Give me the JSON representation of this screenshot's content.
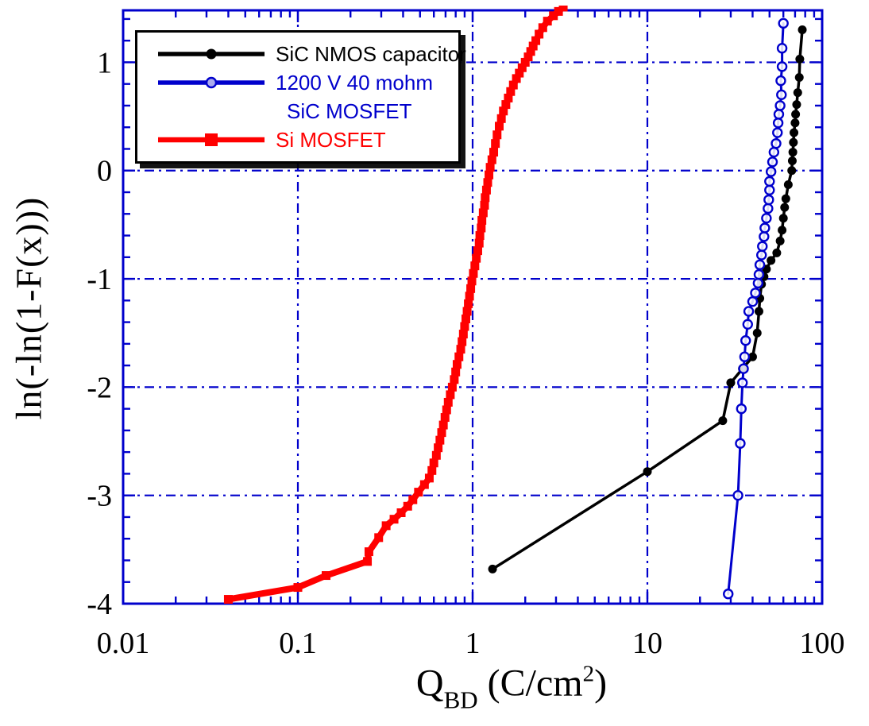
{
  "chart_data": {
    "type": "line",
    "title": "",
    "x_scale": "log",
    "xlim": [
      0.01,
      100
    ],
    "ylim": [
      -4,
      1.48
    ],
    "xlabel": {
      "symbol": "Q",
      "subscript": "BD",
      "unit_prefix": " (C/cm",
      "unit_sup": "2",
      "unit_suffix": ")"
    },
    "ylabel": "ln(-ln(1-F(x)))",
    "x_ticks": [
      {
        "value": 0.01,
        "label": "0.01"
      },
      {
        "value": 0.1,
        "label": "0.1"
      },
      {
        "value": 1,
        "label": "1"
      },
      {
        "value": 10,
        "label": "10"
      },
      {
        "value": 100,
        "label": "100"
      }
    ],
    "y_ticks": [
      {
        "value": 1,
        "label": "1"
      },
      {
        "value": 0,
        "label": "0"
      },
      {
        "value": -1,
        "label": "-1"
      },
      {
        "value": -2,
        "label": "-2"
      },
      {
        "value": -3,
        "label": "-3"
      },
      {
        "value": -4,
        "label": "-4"
      }
    ],
    "grid": {
      "style": "dash-dot",
      "color": "#0000CC",
      "x_lines": [
        0.1,
        1,
        10
      ],
      "y_lines": [
        1,
        0,
        -1,
        -2,
        -3
      ]
    },
    "frame_color": "#0000CC",
    "legend_position": "top-left",
    "series": [
      {
        "name": "SiC NMOS capacitor",
        "legend_lines": [
          "SiC NMOS capacitor"
        ],
        "color": "#000000",
        "marker": "filled-circle",
        "line_width": 3.5,
        "points": [
          [
            1.3,
            -3.68
          ],
          [
            10,
            -2.78
          ],
          [
            27,
            -2.31
          ],
          [
            30,
            -1.96
          ],
          [
            35,
            -1.83
          ],
          [
            40,
            -1.72
          ],
          [
            42.5,
            -1.5
          ],
          [
            43.5,
            -1.3
          ],
          [
            44,
            -1.18
          ],
          [
            45,
            -1.05
          ],
          [
            46.5,
            -0.98
          ],
          [
            48,
            -0.91
          ],
          [
            51,
            -0.83
          ],
          [
            55,
            -0.76
          ],
          [
            57.5,
            -0.65
          ],
          [
            59,
            -0.55
          ],
          [
            60,
            -0.44
          ],
          [
            61,
            -0.34
          ],
          [
            62,
            -0.26
          ],
          [
            64,
            -0.13
          ],
          [
            67,
            0.0
          ],
          [
            67.5,
            0.09
          ],
          [
            68,
            0.17
          ],
          [
            68.5,
            0.26
          ],
          [
            69,
            0.35
          ],
          [
            70,
            0.44
          ],
          [
            70.5,
            0.52
          ],
          [
            71.5,
            0.61
          ],
          [
            72.5,
            0.72
          ],
          [
            74,
            0.86
          ],
          [
            74.5,
            1.03
          ],
          [
            77,
            1.3
          ]
        ]
      },
      {
        "name": "1200 V 40 mohm SiC MOSFET",
        "legend_lines": [
          "1200 V 40 mohm",
          "SiC MOSFET"
        ],
        "color": "#0000CC",
        "marker": "open-circle",
        "line_width": 3,
        "points": [
          [
            29,
            -3.91
          ],
          [
            33,
            -3.0
          ],
          [
            34,
            -2.52
          ],
          [
            34.5,
            -2.2
          ],
          [
            35,
            -1.96
          ],
          [
            35.5,
            -1.83
          ],
          [
            36,
            -1.72
          ],
          [
            36.5,
            -1.57
          ],
          [
            37.5,
            -1.42
          ],
          [
            38,
            -1.3
          ],
          [
            40,
            -1.21
          ],
          [
            41.5,
            -1.13
          ],
          [
            43,
            -1.04
          ],
          [
            43.5,
            -0.96
          ],
          [
            44,
            -0.87
          ],
          [
            45,
            -0.78
          ],
          [
            45.5,
            -0.7
          ],
          [
            46.5,
            -0.61
          ],
          [
            47,
            -0.53
          ],
          [
            48,
            -0.44
          ],
          [
            49,
            -0.35
          ],
          [
            49.5,
            -0.27
          ],
          [
            50,
            -0.18
          ],
          [
            50,
            -0.1
          ],
          [
            51,
            -0.01
          ],
          [
            52,
            0.08
          ],
          [
            53,
            0.17
          ],
          [
            54.5,
            0.25
          ],
          [
            55.5,
            0.35
          ],
          [
            56,
            0.44
          ],
          [
            56.5,
            0.52
          ],
          [
            57.5,
            0.6
          ],
          [
            58.5,
            0.7
          ],
          [
            58,
            0.83
          ],
          [
            59,
            0.96
          ],
          [
            59,
            1.13
          ],
          [
            60,
            1.36
          ]
        ]
      },
      {
        "name": "Si MOSFET",
        "legend_lines": [
          "Si MOSFET"
        ],
        "color": "#FF0000",
        "marker": "filled-square",
        "line_width": 8,
        "points": [
          [
            0.04,
            -3.96
          ],
          [
            0.1,
            -3.85
          ],
          [
            0.145,
            -3.74
          ],
          [
            0.25,
            -3.61
          ],
          [
            0.255,
            -3.52
          ],
          [
            0.29,
            -3.39
          ],
          [
            0.32,
            -3.28
          ],
          [
            0.355,
            -3.22
          ],
          [
            0.39,
            -3.16
          ],
          [
            0.425,
            -3.1
          ],
          [
            0.455,
            -3.04
          ],
          [
            0.49,
            -2.97
          ],
          [
            0.53,
            -2.9
          ],
          [
            0.565,
            -2.84
          ],
          [
            0.585,
            -2.77
          ],
          [
            0.6,
            -2.7
          ],
          [
            0.62,
            -2.63
          ],
          [
            0.635,
            -2.56
          ],
          [
            0.65,
            -2.49
          ],
          [
            0.665,
            -2.42
          ],
          [
            0.68,
            -2.35
          ],
          [
            0.695,
            -2.28
          ],
          [
            0.71,
            -2.21
          ],
          [
            0.725,
            -2.14
          ],
          [
            0.745,
            -2.07
          ],
          [
            0.765,
            -2.0
          ],
          [
            0.785,
            -1.93
          ],
          [
            0.8,
            -1.86
          ],
          [
            0.815,
            -1.79
          ],
          [
            0.835,
            -1.72
          ],
          [
            0.855,
            -1.65
          ],
          [
            0.87,
            -1.58
          ],
          [
            0.885,
            -1.51
          ],
          [
            0.9,
            -1.44
          ],
          [
            0.915,
            -1.37
          ],
          [
            0.93,
            -1.3
          ],
          [
            0.945,
            -1.23
          ],
          [
            0.96,
            -1.16
          ],
          [
            0.975,
            -1.09
          ],
          [
            0.99,
            -1.02
          ],
          [
            1.01,
            -0.95
          ],
          [
            1.03,
            -0.88
          ],
          [
            1.05,
            -0.81
          ],
          [
            1.07,
            -0.74
          ],
          [
            1.09,
            -0.67
          ],
          [
            1.1,
            -0.6
          ],
          [
            1.12,
            -0.53
          ],
          [
            1.13,
            -0.46
          ],
          [
            1.15,
            -0.39
          ],
          [
            1.17,
            -0.32
          ],
          [
            1.18,
            -0.25
          ],
          [
            1.2,
            -0.18
          ],
          [
            1.22,
            -0.11
          ],
          [
            1.24,
            -0.04
          ],
          [
            1.26,
            0.03
          ],
          [
            1.29,
            0.1
          ],
          [
            1.32,
            0.17
          ],
          [
            1.35,
            0.25
          ],
          [
            1.38,
            0.33
          ],
          [
            1.42,
            0.41
          ],
          [
            1.46,
            0.48
          ],
          [
            1.5,
            0.55
          ],
          [
            1.55,
            0.61
          ],
          [
            1.6,
            0.67
          ],
          [
            1.65,
            0.73
          ],
          [
            1.71,
            0.79
          ],
          [
            1.78,
            0.85
          ],
          [
            1.85,
            0.9
          ],
          [
            1.92,
            0.95
          ],
          [
            2.0,
            1.0
          ],
          [
            2.08,
            1.05
          ],
          [
            2.15,
            1.1
          ],
          [
            2.22,
            1.15
          ],
          [
            2.3,
            1.2
          ],
          [
            2.4,
            1.26
          ],
          [
            2.52,
            1.32
          ],
          [
            2.68,
            1.38
          ],
          [
            2.9,
            1.43
          ],
          [
            3.1,
            1.47
          ],
          [
            3.3,
            1.51
          ]
        ]
      }
    ]
  }
}
